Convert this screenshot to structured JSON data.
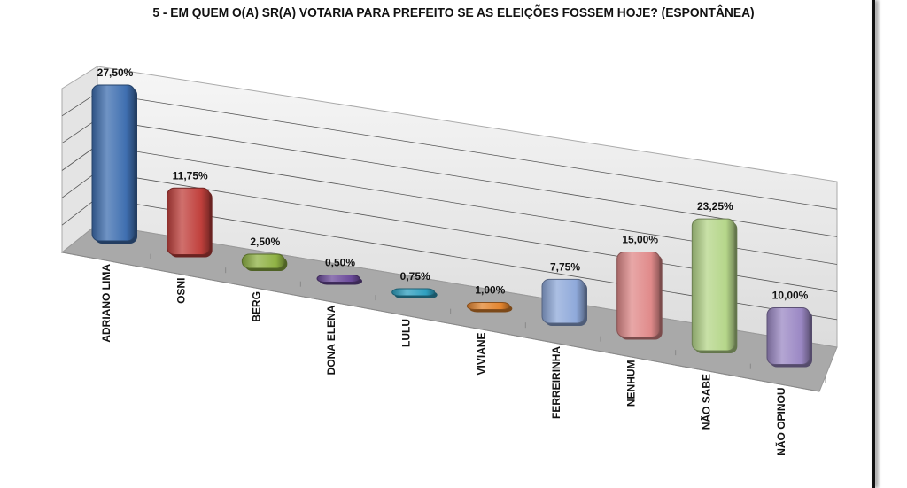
{
  "chart_data": {
    "type": "bar",
    "title": "5 - EM QUEM O(A) SR(A) VOTARIA PARA PREFEITO SE AS ELEIÇÕES FOSSEM HOJE? (ESPONTÂNEA)",
    "xlabel": "",
    "ylabel": "",
    "ylim": [
      0,
      28
    ],
    "grid": true,
    "legend": "none",
    "categories": [
      "ADRIANO LIMA",
      "OSNI",
      "BERG",
      "DONA ELENA",
      "LULU",
      "VIVIANE",
      "FERREIRINHA",
      "NENHUM",
      "NÃO SABE",
      "NÃO OPINOU"
    ],
    "values": [
      27.5,
      11.75,
      2.5,
      0.5,
      0.75,
      1.0,
      7.75,
      15.0,
      23.25,
      10.0
    ],
    "data_labels": [
      "27,50%",
      "11,75%",
      "2,50%",
      "0,50%",
      "0,75%",
      "1,00%",
      "7,75%",
      "15,00%",
      "23,25%",
      "10,00%"
    ],
    "colors": [
      "#3f6fb0",
      "#c0403c",
      "#8fb244",
      "#6b4a9a",
      "#2f9fbf",
      "#e2842e",
      "#8fa9da",
      "#e08a8a",
      "#b5d68a",
      "#9b88c4"
    ]
  }
}
